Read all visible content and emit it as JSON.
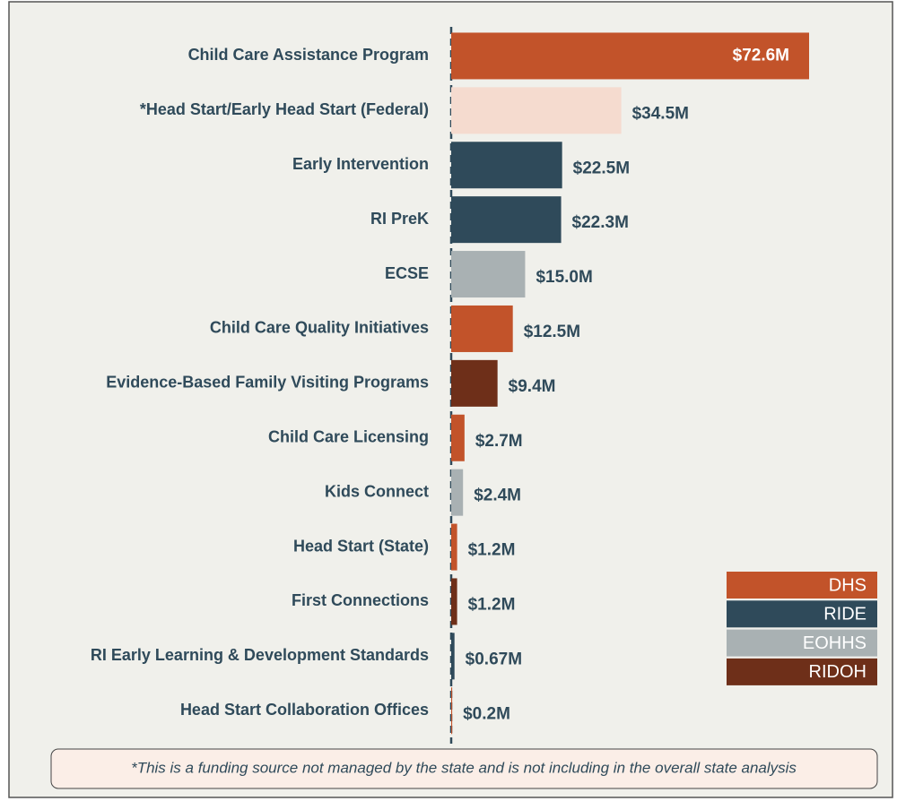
{
  "chart_data": {
    "type": "bar",
    "orientation": "horizontal",
    "categories": [
      "Child Care Assistance Program",
      "*Head Start/Early Head Start (Federal)",
      "Early Intervention",
      "RI PreK",
      "ECSE",
      "Child Care Quality Initiatives",
      "Evidence-Based Family Visiting Programs",
      "Child Care Licensing",
      "Kids Connect",
      "Head Start (State)",
      "First Connections",
      "RI Early Learning & Development Standards",
      "Head Start Collaboration Offices"
    ],
    "values": [
      72.6,
      34.5,
      22.5,
      22.3,
      15.0,
      12.5,
      9.4,
      2.7,
      2.4,
      1.2,
      1.2,
      0.67,
      0.2
    ],
    "value_labels": [
      "$72.6M",
      "$34.5M",
      "$22.5M",
      "$22.3M",
      "$15.0M",
      "$12.5M",
      "$9.4M",
      "$2.7M",
      "$2.4M",
      "$1.2M",
      "$1.2M",
      "$0.67M",
      "$0.2M"
    ],
    "colors": [
      "#c2532a",
      "#f5dbcf",
      "#2f4a5a",
      "#2f4a5a",
      "#a9b1b3",
      "#c2532a",
      "#6e2f19",
      "#c2532a",
      "#a9b1b3",
      "#c2532a",
      "#6e2f19",
      "#2f4a5a",
      "#c2532a"
    ],
    "legend": [
      {
        "name": "DHS",
        "color": "#c2532a"
      },
      {
        "name": "RIDE",
        "color": "#2f4a5a"
      },
      {
        "name": "EOHHS",
        "color": "#a9b1b3"
      },
      {
        "name": "RIDOH",
        "color": "#6e2f19"
      }
    ],
    "footnote": "*This is a funding source not managed by the state and is not including in the overall state analysis"
  }
}
